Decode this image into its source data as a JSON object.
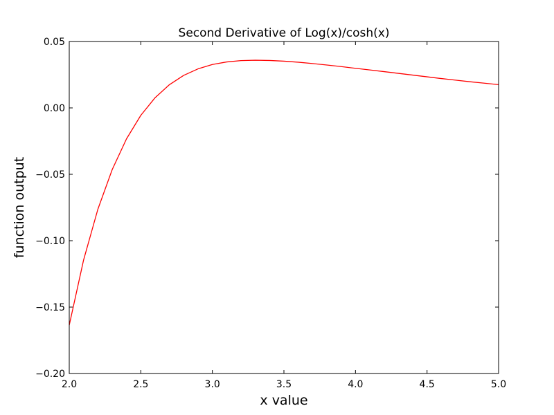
{
  "chart_data": {
    "type": "line",
    "title": "Second Derivative of Log(x)/cosh(x)",
    "xlabel": "x value",
    "ylabel": "function output",
    "xlim": [
      2.0,
      5.0
    ],
    "ylim": [
      -0.2,
      0.05
    ],
    "grid": false,
    "x_ticks": [
      "2.0",
      "2.5",
      "3.0",
      "3.5",
      "4.0",
      "4.5",
      "5.0"
    ],
    "y_ticks": [
      "0.05",
      "0.00",
      "−0.05",
      "−0.10",
      "−0.15",
      "−0.20"
    ],
    "series": [
      {
        "color": "#ff0000",
        "x": [
          2.0,
          2.1,
          2.2,
          2.3,
          2.4,
          2.5,
          2.6,
          2.7,
          2.8,
          2.9,
          3.0,
          3.1,
          3.2,
          3.3,
          3.4,
          3.5,
          3.6,
          3.7,
          3.8,
          3.9,
          4.0,
          4.1,
          4.2,
          4.3,
          4.4,
          4.5,
          4.6,
          4.7,
          4.8,
          4.9,
          5.0
        ],
        "y": [
          -0.1636,
          -0.1146,
          -0.0763,
          -0.0465,
          -0.0233,
          -0.0056,
          0.0077,
          0.0175,
          0.0245,
          0.0294,
          0.0327,
          0.0346,
          0.0356,
          0.0359,
          0.0357,
          0.0352,
          0.0344,
          0.0334,
          0.0323,
          0.0311,
          0.0298,
          0.0286,
          0.0273,
          0.026,
          0.0247,
          0.0234,
          0.0221,
          0.0209,
          0.0197,
          0.0186,
          0.0175
        ]
      }
    ]
  }
}
